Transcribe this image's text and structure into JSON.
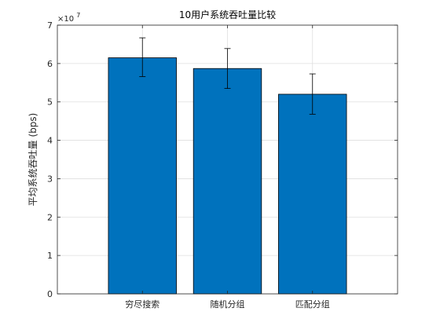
{
  "chart_data": {
    "type": "bar",
    "title": "10用户系统吞吐量比较",
    "xlabel": "",
    "ylabel": "平均系统吞吐量 (bps)",
    "categories": [
      "穷尽搜索",
      "随机分组",
      "匹配分组"
    ],
    "values": [
      61500000,
      58700000,
      52000000
    ],
    "error_low": [
      4900000,
      5200000,
      5200000
    ],
    "error_high": [
      5200000,
      5200000,
      5300000
    ],
    "ylim": [
      0,
      70000000
    ],
    "yticks": [
      0,
      10000000,
      20000000,
      30000000,
      40000000,
      50000000,
      60000000,
      70000000
    ],
    "ytick_labels": [
      "0",
      "1",
      "2",
      "3",
      "4",
      "5",
      "6",
      "7"
    ],
    "yscale_exponent_base": "×10",
    "yscale_exponent_power": "7",
    "grid": true,
    "bar_color": "#0072bd",
    "error_bar_color": "#000000"
  }
}
